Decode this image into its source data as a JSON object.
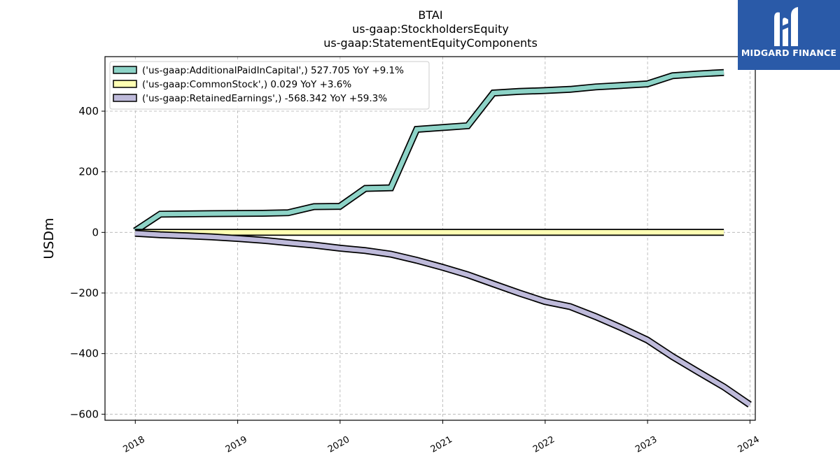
{
  "chart_data": {
    "type": "line",
    "title_lines": [
      "BTAI",
      "us-gaap:StockholdersEquity",
      "us-gaap:StatementEquityComponents"
    ],
    "ylabel": "USDm",
    "xlabel": "",
    "ylim": [
      -620,
      580
    ],
    "xlim": [
      "2017-09-15",
      "2024-01-20"
    ],
    "yticks": [
      -600,
      -400,
      -200,
      0,
      200,
      400
    ],
    "ytick_labels": [
      "−600",
      "−400",
      "−200",
      "0",
      "200",
      "400"
    ],
    "xticks": [
      "2018-01-01",
      "2019-01-01",
      "2020-01-01",
      "2021-01-01",
      "2022-01-01",
      "2023-01-01",
      "2024-01-01"
    ],
    "xtick_labels": [
      "2018",
      "2019",
      "2020",
      "2021",
      "2022",
      "2023",
      "2024"
    ],
    "grid": true,
    "legend_position": "top-left",
    "series": [
      {
        "name": "('us-gaap:AdditionalPaidInCapital',) 527.705 YoY +9.1%",
        "color": "#8dd3c7",
        "points": [
          [
            "2017-12-31",
            5
          ],
          [
            "2018-03-31",
            60
          ],
          [
            "2018-09-30",
            62
          ],
          [
            "2019-03-31",
            63
          ],
          [
            "2019-06-30",
            65
          ],
          [
            "2019-09-30",
            85
          ],
          [
            "2019-12-31",
            86
          ],
          [
            "2020-03-31",
            145
          ],
          [
            "2020-06-30",
            147
          ],
          [
            "2020-09-30",
            340
          ],
          [
            "2020-12-31",
            346
          ],
          [
            "2021-03-31",
            352
          ],
          [
            "2021-06-30",
            460
          ],
          [
            "2021-09-30",
            465
          ],
          [
            "2021-12-31",
            468
          ],
          [
            "2022-03-31",
            472
          ],
          [
            "2022-06-30",
            480
          ],
          [
            "2022-09-30",
            485
          ],
          [
            "2022-12-31",
            490
          ],
          [
            "2023-03-31",
            517
          ],
          [
            "2023-06-30",
            523
          ],
          [
            "2023-09-30",
            527.705
          ]
        ]
      },
      {
        "name": "('us-gaap:CommonStock',) 0.029 YoY +3.6%",
        "color": "#ffffb3",
        "points": [
          [
            "2017-12-31",
            0.02
          ],
          [
            "2023-09-30",
            0.029
          ]
        ]
      },
      {
        "name": "('us-gaap:RetainedEarnings',) -568.342 YoY +59.3%",
        "color": "#bebada",
        "points": [
          [
            "2017-12-31",
            -3
          ],
          [
            "2018-03-31",
            -8
          ],
          [
            "2018-06-30",
            -11
          ],
          [
            "2018-09-30",
            -15
          ],
          [
            "2018-12-31",
            -20
          ],
          [
            "2019-03-31",
            -26
          ],
          [
            "2019-06-30",
            -34
          ],
          [
            "2019-09-30",
            -42
          ],
          [
            "2019-12-31",
            -52
          ],
          [
            "2020-03-31",
            -60
          ],
          [
            "2020-06-30",
            -72
          ],
          [
            "2020-09-30",
            -92
          ],
          [
            "2020-12-31",
            -115
          ],
          [
            "2021-03-31",
            -140
          ],
          [
            "2021-06-30",
            -170
          ],
          [
            "2021-09-30",
            -200
          ],
          [
            "2021-12-31",
            -228
          ],
          [
            "2022-03-31",
            -245
          ],
          [
            "2022-06-30",
            -278
          ],
          [
            "2022-09-30",
            -315
          ],
          [
            "2022-12-31",
            -355
          ],
          [
            "2023-03-31",
            -410
          ],
          [
            "2023-06-30",
            -460
          ],
          [
            "2023-09-30",
            -510
          ],
          [
            "2023-12-31",
            -568.342
          ]
        ]
      }
    ]
  },
  "logo": {
    "text": "MIDGARD FINANCE",
    "icon": "midgard-logo-icon",
    "background": "#2a5aa8"
  }
}
